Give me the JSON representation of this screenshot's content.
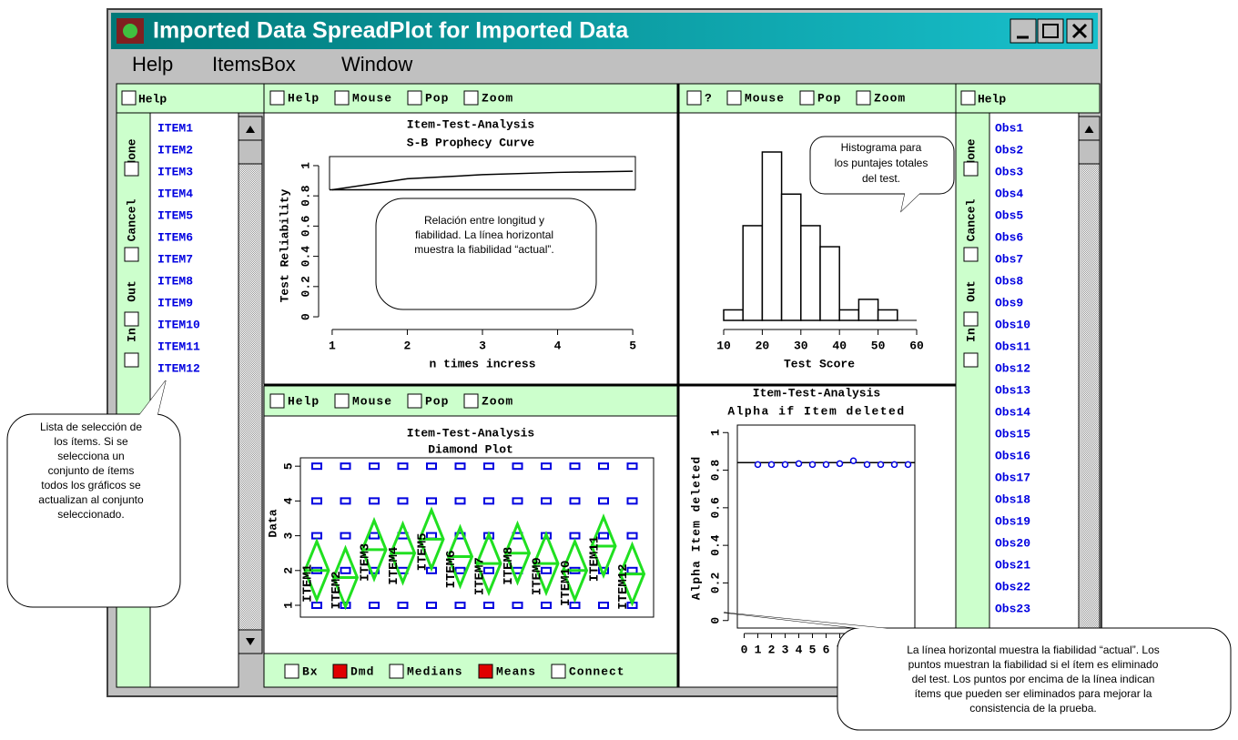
{
  "window": {
    "title": "Imported Data SpreadPlot for Imported Data"
  },
  "menu": [
    "Help",
    "ItemsBox",
    "Window"
  ],
  "items_panel": {
    "header": "Help",
    "options": [
      "None",
      "Cancel",
      "Out",
      "In"
    ],
    "items": [
      "ITEM1",
      "ITEM2",
      "ITEM3",
      "ITEM4",
      "ITEM5",
      "ITEM6",
      "ITEM7",
      "ITEM8",
      "ITEM9",
      "ITEM10",
      "ITEM11",
      "ITEM12"
    ]
  },
  "obs_panel": {
    "header": "Help",
    "options": [
      "None",
      "Cancel",
      "Out",
      "In"
    ],
    "items": [
      "Obs1",
      "Obs2",
      "Obs3",
      "Obs4",
      "Obs5",
      "Obs6",
      "Obs7",
      "Obs8",
      "Obs9",
      "Obs10",
      "Obs11",
      "Obs12",
      "Obs13",
      "Obs14",
      "Obs15",
      "Obs16",
      "Obs17",
      "Obs18",
      "Obs19",
      "Obs20",
      "Obs21",
      "Obs22",
      "Obs23"
    ]
  },
  "reliability_plot": {
    "type": "line",
    "toolbar": [
      "Help",
      "Mouse",
      "Pop",
      "Zoom"
    ],
    "title": [
      "Item-Test-Analysis",
      "S-B Prophecy Curve"
    ],
    "y_label": "Test Reliability",
    "x_label": "n times incress",
    "x": [
      1,
      2,
      3,
      4,
      5
    ],
    "values": [
      0.84,
      0.913,
      0.94,
      0.955,
      0.963
    ],
    "current": 0.84,
    "xlim": [
      0.88,
      5.12
    ],
    "xticks": [
      1,
      2,
      3,
      4,
      5
    ],
    "ylim": [
      -0.06,
      1.06
    ],
    "yticks": [
      0,
      0.2,
      0.4,
      0.6,
      0.8,
      1
    ]
  },
  "histogram": {
    "type": "histogram",
    "toolbar": [
      "?",
      "Mouse",
      "Pop",
      "Zoom"
    ],
    "x_label": "Test Score",
    "bins": [
      10,
      15,
      20,
      25,
      30,
      35,
      40,
      45,
      50,
      55
    ],
    "counts": [
      1,
      9,
      16,
      12,
      9,
      7,
      1,
      2,
      1
    ],
    "xlim": [
      10,
      60
    ],
    "xticks": [
      10,
      20,
      30,
      40,
      50,
      60
    ]
  },
  "diamond_plot": {
    "type": "diamond",
    "toolbar": [
      "Help",
      "Mouse",
      "Pop",
      "Zoom"
    ],
    "title": [
      "Item-Test-Analysis",
      "Diamond Plot"
    ],
    "y_label": "Data",
    "categories": [
      "ITEM1",
      "ITEM2",
      "ITEM3",
      "ITEM4",
      "ITEM5",
      "ITEM6",
      "ITEM7",
      "ITEM8",
      "ITEM9",
      "ITEM10",
      "ITEM11",
      "ITEM12"
    ],
    "means": [
      2.0,
      1.8,
      2.6,
      2.5,
      2.9,
      2.4,
      2.2,
      2.5,
      2.2,
      2.0,
      2.7,
      1.9
    ],
    "ylim": [
      0.66,
      5.24
    ],
    "yticks": [
      1,
      2,
      3,
      4,
      5
    ],
    "options": [
      "Bx",
      "Dmd",
      "Medians",
      "Means",
      "Connect"
    ],
    "checked": [
      false,
      true,
      false,
      true,
      false
    ]
  },
  "alpha_plot": {
    "type": "scatter",
    "title": [
      "Item-Test-Analysis",
      "Alpha if Item deleted"
    ],
    "y_label": "Alpha Item deleted",
    "x": [
      1,
      2,
      3,
      4,
      5,
      6,
      7,
      8,
      9,
      10,
      11,
      12
    ],
    "values": [
      0.83,
      0.83,
      0.83,
      0.835,
      0.83,
      0.83,
      0.835,
      0.85,
      0.83,
      0.83,
      0.83,
      0.83
    ],
    "current": 0.84,
    "xlim": [
      -0.5,
      12.5
    ],
    "xticks": [
      0,
      1,
      2,
      3,
      4,
      5,
      6,
      7,
      8,
      9,
      10,
      11,
      12
    ],
    "ylim": [
      -0.04,
      1.04
    ],
    "yticks": [
      0,
      0.2,
      0.4,
      0.6,
      0.8,
      1
    ]
  },
  "callouts": [
    {
      "lines": [
        "Relación entre longitud y",
        "fiabilidad. La línea horizontal",
        "muestra la fiabilidad “actual”."
      ]
    },
    {
      "lines": [
        "Histograma para",
        "los puntajes totales",
        "del test."
      ]
    },
    {
      "lines": [
        "Lista de selección de",
        "los ítems. Si se",
        "selecciona un",
        "conjunto de ítems",
        "todos los gráficos se",
        "actualizan al conjunto",
        "seleccionado."
      ]
    },
    {
      "lines": [
        "La línea horizontal muestra la fiabilidad “actual”. Los",
        "puntos muestran la fiabilidad si el ítem es eliminado",
        "del test. Los puntos por encima de la línea  indican",
        "ítems que pueden ser eliminados para mejorar la",
        "consistencia de la prueba."
      ]
    }
  ]
}
